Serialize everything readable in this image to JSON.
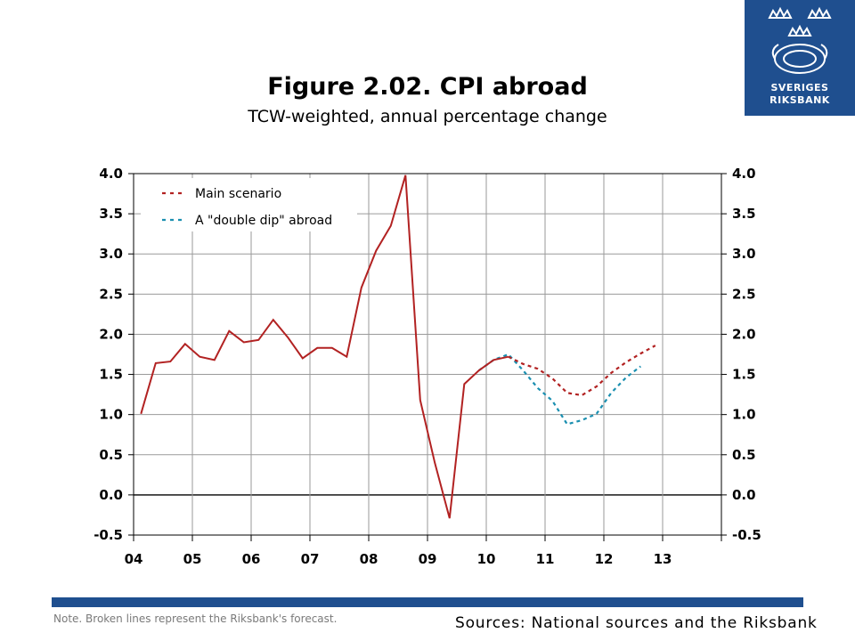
{
  "header": {
    "title": "Figure 2.02. CPI abroad",
    "subtitle": "TCW-weighted, annual percentage change"
  },
  "logo": {
    "line1": "SVERIGES",
    "line2": "RIKSBANK",
    "color": "#1f4f8f"
  },
  "footer": {
    "note": "Note. Broken lines represent the Riksbank's forecast.",
    "sources": "Sources: National sources and the Riksbank",
    "bar_color": "#1f4f8f"
  },
  "chart_data": {
    "type": "line",
    "ylim": [
      -0.5,
      4.0
    ],
    "y_ticks": [
      4.0,
      3.5,
      3.0,
      2.5,
      2.0,
      1.5,
      1.0,
      0.5,
      0.0,
      -0.5
    ],
    "y_tick_labels": [
      "4.0",
      "3.5",
      "3.0",
      "2.5",
      "2.0",
      "1.5",
      "1.0",
      "0.5",
      "0.0",
      "-0.5"
    ],
    "x_labels": [
      "04",
      "05",
      "06",
      "07",
      "08",
      "09",
      "10",
      "11",
      "12",
      "13"
    ],
    "xlim": [
      2004.0,
      2014.0
    ],
    "grid": true,
    "dual_y_axis": true,
    "legend": {
      "placement": "top-left"
    },
    "series": [
      {
        "name": "Main scenario",
        "color": "#b22222",
        "style": "mixed",
        "values": [
          [
            2004.125,
            1.01
          ],
          [
            2004.375,
            1.64
          ],
          [
            2004.625,
            1.66
          ],
          [
            2004.875,
            1.88
          ],
          [
            2005.125,
            1.72
          ],
          [
            2005.375,
            1.68
          ],
          [
            2005.625,
            2.04
          ],
          [
            2005.875,
            1.9
          ],
          [
            2006.125,
            1.93
          ],
          [
            2006.375,
            2.18
          ],
          [
            2006.625,
            1.96
          ],
          [
            2006.875,
            1.7
          ],
          [
            2007.125,
            1.83
          ],
          [
            2007.375,
            1.83
          ],
          [
            2007.625,
            1.72
          ],
          [
            2007.875,
            2.58
          ],
          [
            2008.125,
            3.04
          ],
          [
            2008.375,
            3.35
          ],
          [
            2008.625,
            3.98
          ],
          [
            2008.875,
            1.18
          ],
          [
            2009.125,
            0.4
          ],
          [
            2009.375,
            -0.29
          ],
          [
            2009.625,
            1.38
          ],
          [
            2009.875,
            1.55
          ],
          [
            2010.125,
            1.68
          ],
          [
            2010.375,
            1.72
          ],
          [
            2010.625,
            1.63
          ],
          [
            2010.875,
            1.57
          ],
          [
            2011.125,
            1.45
          ],
          [
            2011.375,
            1.27
          ],
          [
            2011.625,
            1.24
          ],
          [
            2011.875,
            1.35
          ],
          [
            2012.125,
            1.52
          ],
          [
            2012.375,
            1.65
          ],
          [
            2012.625,
            1.76
          ],
          [
            2012.875,
            1.86
          ]
        ],
        "forecast_from": 2010.375
      },
      {
        "name": "A \"double dip\" abroad",
        "color": "#1a8fb0",
        "style": "dashed",
        "values": [
          [
            2009.875,
            1.55
          ],
          [
            2010.125,
            1.68
          ],
          [
            2010.375,
            1.75
          ],
          [
            2010.625,
            1.55
          ],
          [
            2010.875,
            1.33
          ],
          [
            2011.125,
            1.17
          ],
          [
            2011.375,
            0.88
          ],
          [
            2011.625,
            0.93
          ],
          [
            2011.875,
            1.01
          ],
          [
            2012.125,
            1.27
          ],
          [
            2012.375,
            1.46
          ],
          [
            2012.625,
            1.6
          ]
        ]
      }
    ]
  }
}
